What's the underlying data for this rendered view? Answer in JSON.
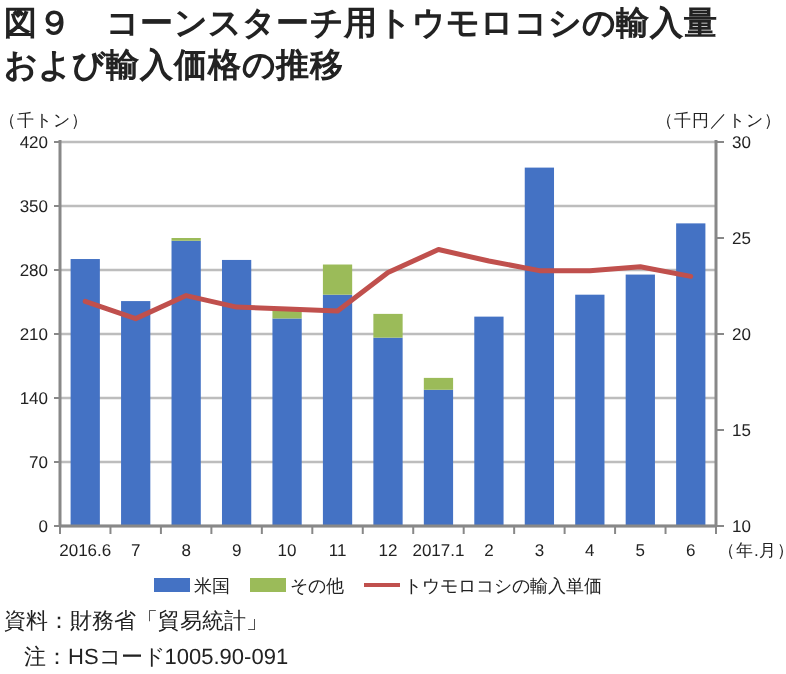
{
  "chart_data": {
    "type": "bar",
    "stacked": true,
    "title": "図９　コーンスターチ用トウモロコシの輸入量",
    "subtitle": "および輸入価格の推移",
    "ylabel": "（千トン）",
    "y2label": "（千円／トン）",
    "xlabel": "（年.月）",
    "categories": [
      "2016.6",
      "7",
      "8",
      "9",
      "10",
      "11",
      "12",
      "2017.1",
      "2",
      "3",
      "4",
      "5",
      "6"
    ],
    "series": [
      {
        "name": "米国",
        "color": "#4472c4",
        "values": [
          292,
          246,
          312,
          291,
          227,
          253,
          206,
          149,
          229,
          392,
          253,
          275,
          331
        ]
      },
      {
        "name": "その他",
        "color": "#9bbb59",
        "values": [
          0,
          0,
          3,
          0,
          11,
          33,
          26,
          13,
          0,
          0,
          0,
          0,
          0
        ]
      },
      {
        "name": "トウモロコシの輸入単価",
        "color": "#c0504d",
        "type": "line",
        "axis": "y2",
        "marker": "none",
        "line_style": "solid",
        "values": [
          21.7,
          20.8,
          22.0,
          21.4,
          21.3,
          21.2,
          23.2,
          24.4,
          23.8,
          23.3,
          23.3,
          23.5,
          23.0
        ]
      }
    ],
    "ylim": [
      0,
      420
    ],
    "yticks": [
      0,
      70,
      140,
      210,
      280,
      350,
      420
    ],
    "y2lim": [
      10,
      30
    ],
    "y2ticks": [
      10,
      15,
      20,
      25,
      30
    ],
    "grid": "y",
    "legend": "bottom",
    "annotations": [
      "資料：財務省「貿易統計」",
      "注：HSコード1005.90-091"
    ]
  }
}
